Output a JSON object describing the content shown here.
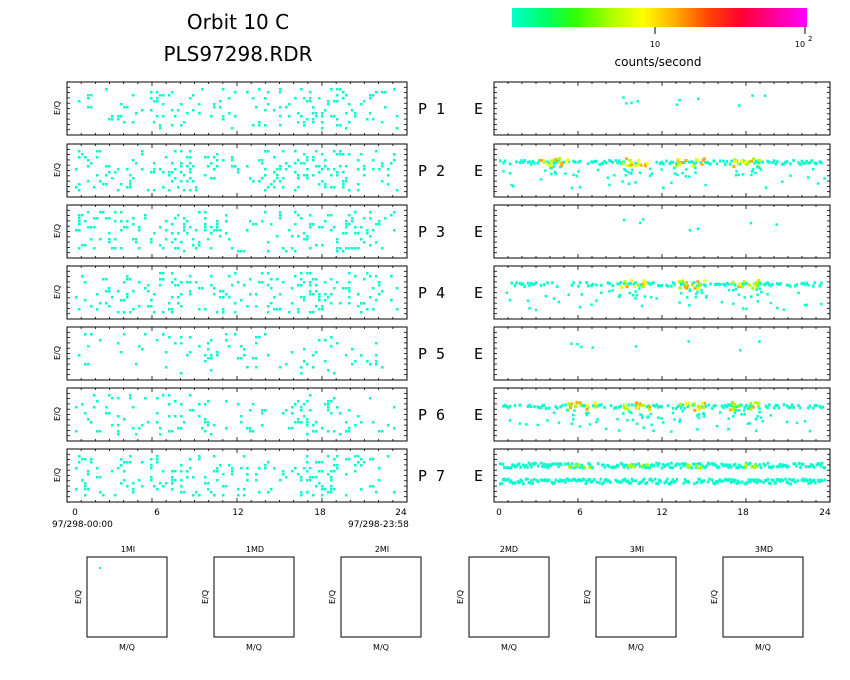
{
  "header": {
    "title_line1": "Orbit 10 C",
    "title_line2": "PLS97298.RDR"
  },
  "colorbar": {
    "unit_label": "counts/second",
    "tick_labels": [
      "10",
      "10"
    ],
    "exponent_label": "2",
    "colors": [
      "#00ffcc",
      "#00ff66",
      "#33ff00",
      "#aaff00",
      "#ffff00",
      "#ffaa00",
      "#ff4400",
      "#ff0033",
      "#ff0099",
      "#ff00ff"
    ]
  },
  "left_column": {
    "y_label": "E/Q",
    "x_ticks": [
      "0",
      "6",
      "12",
      "18",
      "24"
    ],
    "time_start": "97/298-00:00",
    "time_end": "97/298-23:58",
    "cell_color": "#00ffcc"
  },
  "right_column": {
    "x_ticks": [
      "0",
      "6",
      "12",
      "18",
      "24"
    ],
    "row_suffix": "E"
  },
  "rows": [
    {
      "label": "P 1"
    },
    {
      "label": "P 2"
    },
    {
      "label": "P 3"
    },
    {
      "label": "P 4"
    },
    {
      "label": "P 5"
    },
    {
      "label": "P 6"
    },
    {
      "label": "P 7"
    }
  ],
  "bottom_panels": {
    "x_label": "M/Q",
    "y_label": "E/Q",
    "titles": [
      "1MI",
      "1MD",
      "2MI",
      "2MD",
      "3MI",
      "3MD"
    ]
  },
  "chart_data": {
    "type": "heatmap",
    "description_x": "hour of day",
    "x_range": [
      0,
      24
    ],
    "color_scale": "log counts/second",
    "left_density": [
      0.18,
      0.22,
      0.24,
      0.2,
      0.1,
      0.14,
      0.18
    ],
    "right_features": [
      {
        "panel": "P 1",
        "level": "sparse"
      },
      {
        "panel": "P 2",
        "level": "band",
        "peak_hours": [
          4,
          10,
          14,
          18
        ]
      },
      {
        "panel": "P 3",
        "level": "sparse"
      },
      {
        "panel": "P 4",
        "level": "band",
        "peak_hours": [
          10,
          14,
          18
        ]
      },
      {
        "panel": "P 5",
        "level": "sparse"
      },
      {
        "panel": "P 6",
        "level": "band",
        "peak_hours": [
          6,
          10,
          14,
          18
        ]
      },
      {
        "panel": "P 7",
        "level": "dense"
      }
    ]
  }
}
